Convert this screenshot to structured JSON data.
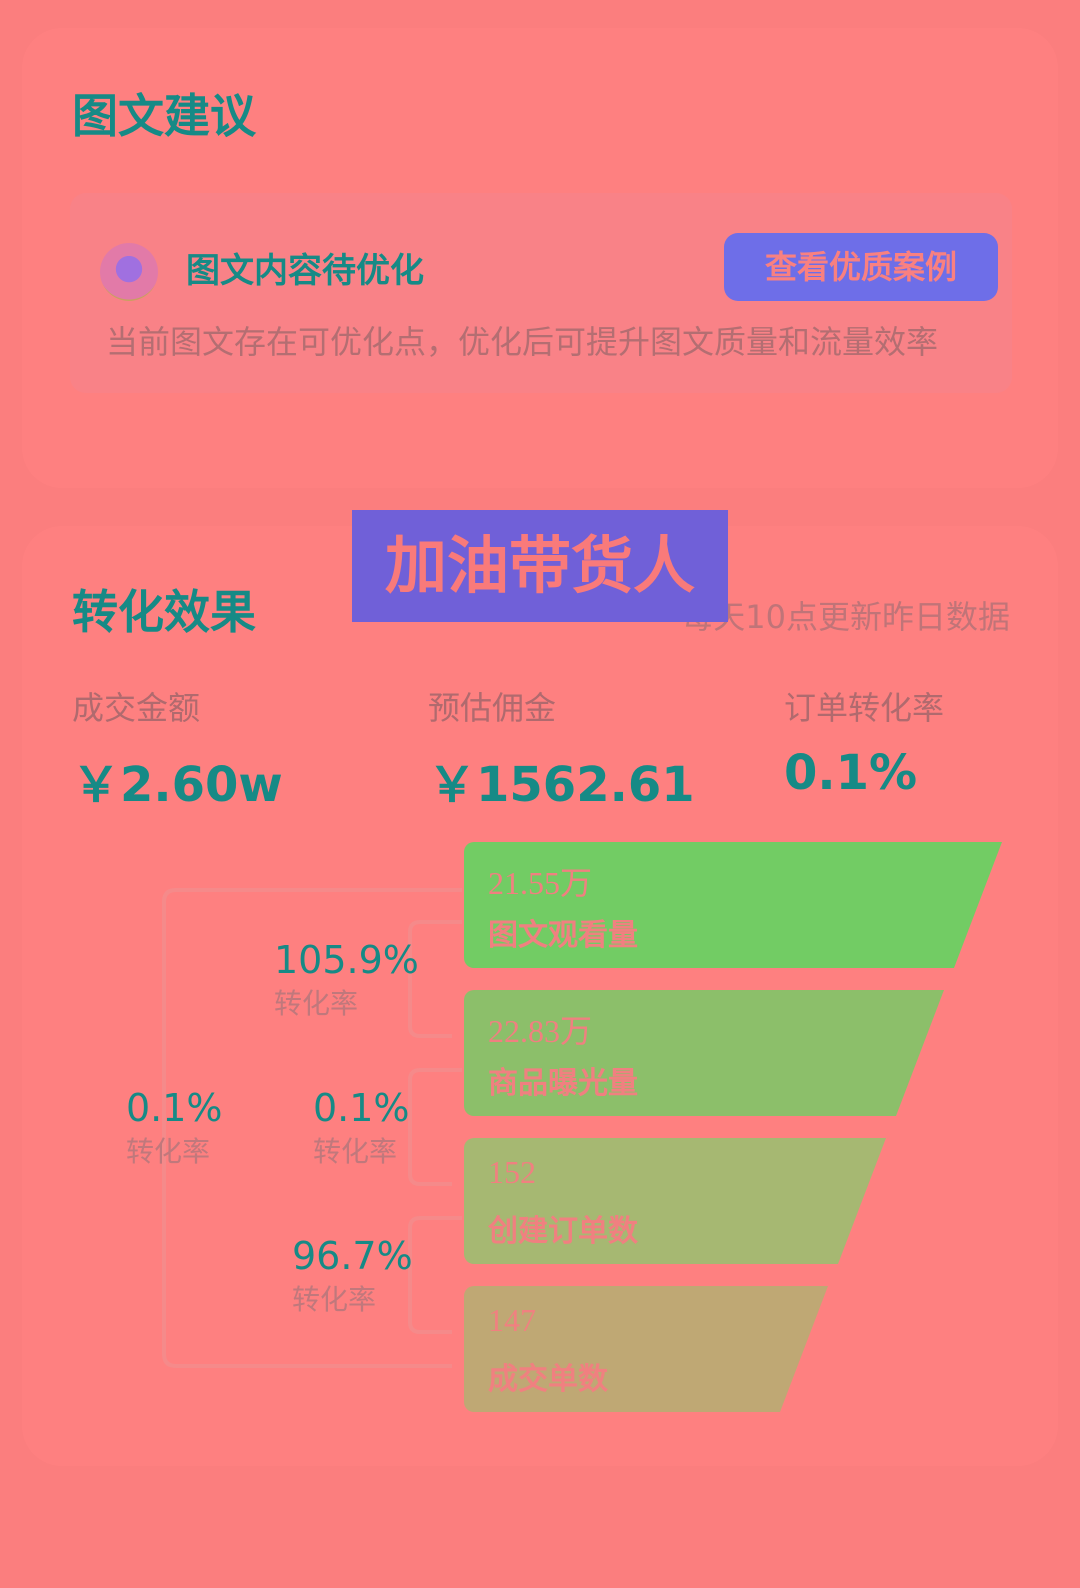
{
  "suggestion_card": {
    "title": "图文建议",
    "item": {
      "avatar_icon": "emoji-face-icon",
      "title": "图文内容待优化",
      "button": "查看优质案例",
      "description": "当前图文存在可优化点，优化后可提升图文质量和流量效率"
    }
  },
  "overlay_banner": "加油带货人",
  "conversion_card": {
    "title": "转化效果",
    "update_note": "每天10点更新昨日数据",
    "metrics": [
      {
        "label": "成交金额",
        "value": "￥2.60w"
      },
      {
        "label": "预估佣金",
        "value": "￥1562.61"
      },
      {
        "label": "订单转化率",
        "value": "0.1%"
      }
    ],
    "funnel": [
      {
        "value": "21.55万",
        "label": "图文观看量",
        "color": "#72cc64"
      },
      {
        "value": "22.83万",
        "label": "商品曝光量",
        "color": "#8cbf6a"
      },
      {
        "value": "152",
        "label": "创建订单数",
        "color": "#a6b872"
      },
      {
        "value": "147",
        "label": "成交单数",
        "color": "#bfa874"
      }
    ],
    "rates": [
      {
        "value": "105.9%",
        "label": "转化率"
      },
      {
        "value": "0.1%",
        "label": "转化率"
      },
      {
        "value": "96.7%",
        "label": "转化率"
      },
      {
        "value": "0.1%",
        "label": "转化率"
      }
    ]
  },
  "colors": {
    "background": "#fb7e7e",
    "accent_text": "#168a86",
    "button": "#6e6ee8",
    "banner": "#7060d8"
  }
}
